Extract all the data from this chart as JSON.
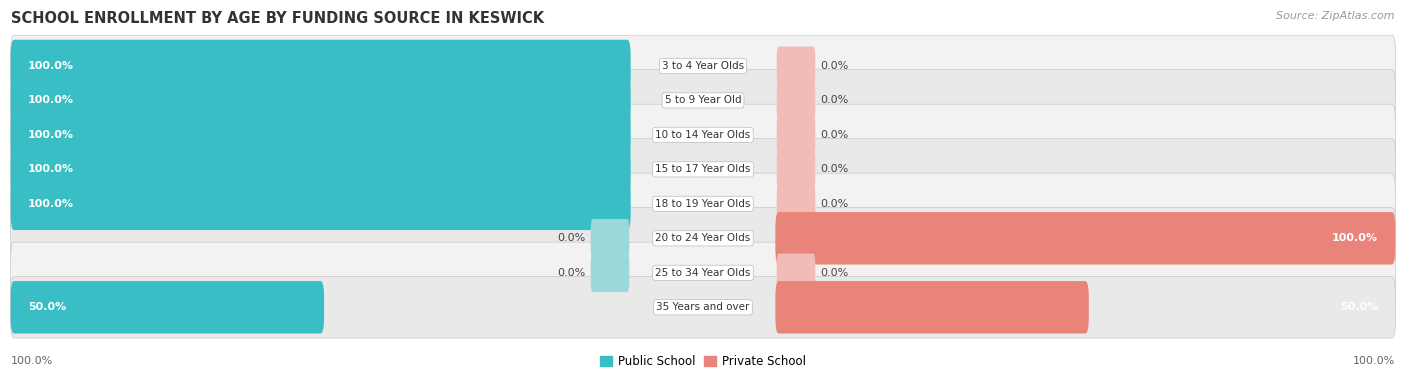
{
  "title": "SCHOOL ENROLLMENT BY AGE BY FUNDING SOURCE IN KESWICK",
  "source": "Source: ZipAtlas.com",
  "categories": [
    "3 to 4 Year Olds",
    "5 to 9 Year Old",
    "10 to 14 Year Olds",
    "15 to 17 Year Olds",
    "18 to 19 Year Olds",
    "20 to 24 Year Olds",
    "25 to 34 Year Olds",
    "35 Years and over"
  ],
  "public_values": [
    100.0,
    100.0,
    100.0,
    100.0,
    100.0,
    0.0,
    0.0,
    50.0
  ],
  "private_values": [
    0.0,
    0.0,
    0.0,
    0.0,
    0.0,
    100.0,
    0.0,
    50.0
  ],
  "public_color": "#38BEC4",
  "private_color": "#E8847A",
  "public_color_light": "#99D9DC",
  "private_color_light": "#F0BCB5",
  "row_bg_even": "#F2F2F2",
  "row_bg_odd": "#E9E9E9",
  "row_border": "#D0D0D0",
  "label_white": "#FFFFFF",
  "label_dark": "#444444",
  "axis_label_left": "100.0%",
  "axis_label_right": "100.0%",
  "legend_public": "Public School",
  "legend_private": "Private School",
  "title_fontsize": 10.5,
  "source_fontsize": 8,
  "bar_label_fontsize": 8,
  "category_fontsize": 7.5,
  "axis_fontsize": 8,
  "max_val": 100,
  "stub_val": 5
}
